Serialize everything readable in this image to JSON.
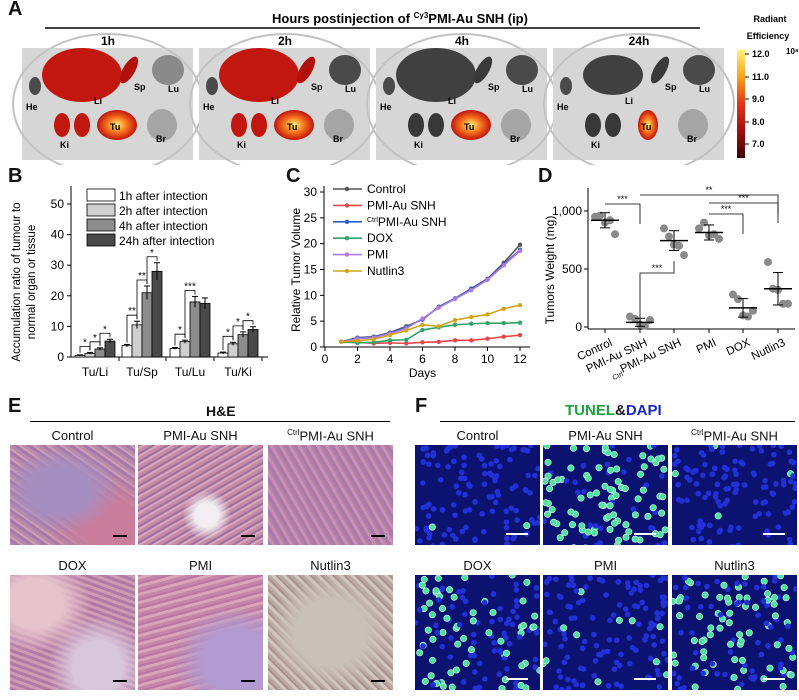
{
  "panel_labels": {
    "a": "A",
    "b": "B",
    "c": "C",
    "d": "D",
    "e": "E",
    "f": "F"
  },
  "panel_a": {
    "title_prefix": "Hours postinjection of ",
    "title_sup": "Cy3",
    "title_suffix": "PMI-Au SNH (ip)",
    "timepoints": [
      "1h",
      "2h",
      "4h",
      "24h"
    ],
    "organs": {
      "he": "He",
      "li": "Li",
      "sp": "Sp",
      "lu": "Lu",
      "ki": "Ki",
      "tu": "Tu",
      "br": "Br"
    },
    "colorbar": {
      "title_1": "Radiant",
      "title_2": "Efficiency",
      "exponent": "10⁸",
      "ticks": [
        "12.0",
        "11.0",
        "9.0",
        "8.0",
        "7.0"
      ],
      "colors": [
        "#fdf27a",
        "#f7a21c",
        "#e2331a",
        "#a10e0e",
        "#3a0606"
      ]
    }
  },
  "chart_data": [
    {
      "type": "bar",
      "panel": "B",
      "ylabel_1": "Accumulation ratio of tumour to",
      "ylabel_2": "normal organ or tissue",
      "ylim": [
        0,
        55
      ],
      "yticks": [
        "0",
        "10",
        "20",
        "30",
        "40",
        "50"
      ],
      "categories": [
        "Tu/Li",
        "Tu/Sp",
        "Tu/Lu",
        "Tu/Ki"
      ],
      "series": [
        {
          "name": "1h after intection",
          "values": [
            0.5,
            3.7,
            2.8,
            1.3
          ],
          "errors": [
            0.2,
            0.4,
            0.3,
            0.3
          ],
          "color": "#ffffff"
        },
        {
          "name": "2h after intection",
          "values": [
            1.2,
            10.5,
            5.0,
            4.3
          ],
          "errors": [
            0.3,
            1.2,
            0.5,
            0.5
          ],
          "color": "#cfcfcf"
        },
        {
          "name": "4h after intection",
          "values": [
            2.6,
            21.0,
            18.0,
            7.3
          ],
          "errors": [
            0.4,
            2.2,
            1.8,
            0.9
          ],
          "color": "#8c8c8c"
        },
        {
          "name": "24h after intection",
          "values": [
            5.2,
            28.0,
            17.5,
            9.0
          ],
          "errors": [
            0.6,
            2.8,
            1.8,
            0.9
          ],
          "color": "#4a4a4a"
        }
      ],
      "significance": [
        [
          "Tu/Li",
          "1h",
          "2h",
          "*"
        ],
        [
          "Tu/Li",
          "2h",
          "4h",
          "*"
        ],
        [
          "Tu/Li",
          "4h",
          "24h",
          "*"
        ],
        [
          "Tu/Sp",
          "1h",
          "2h",
          "**"
        ],
        [
          "Tu/Sp",
          "2h",
          "4h",
          "**"
        ],
        [
          "Tu/Sp",
          "4h",
          "24h",
          "*"
        ],
        [
          "Tu/Lu",
          "1h",
          "2h",
          "*"
        ],
        [
          "Tu/Lu",
          "2h",
          "4h",
          "***"
        ],
        [
          "Tu/Ki",
          "1h",
          "2h",
          "*"
        ],
        [
          "Tu/Ki",
          "2h",
          "4h",
          "*"
        ],
        [
          "Tu/Ki",
          "4h",
          "24h",
          "*"
        ]
      ]
    },
    {
      "type": "line",
      "panel": "C",
      "xlabel": "Days",
      "ylabel": "Relative Tumor Volume",
      "xlim": [
        0,
        12.5
      ],
      "ylim": [
        0,
        30
      ],
      "xticks": [
        "0",
        "2",
        "4",
        "6",
        "8",
        "10",
        "12"
      ],
      "yticks": [
        "0",
        "5",
        "10",
        "15",
        "20",
        "25",
        "30"
      ],
      "x": [
        1,
        2,
        3,
        4,
        5,
        6,
        7,
        8,
        9,
        10,
        11,
        12
      ],
      "series": [
        {
          "name": "Control",
          "color": "#555555",
          "values": [
            1,
            1.8,
            2.0,
            2.8,
            4.0,
            5.3,
            7.8,
            9.4,
            11.3,
            13.2,
            16.3,
            19.8
          ]
        },
        {
          "name": "PMI-Au SNH",
          "color": "#e8474a",
          "values": [
            1,
            0.9,
            0.7,
            0.8,
            0.7,
            0.9,
            1.0,
            1.3,
            1.3,
            1.6,
            2.0,
            2.3
          ]
        },
        {
          "name_sup": "Ctrl",
          "name": "PMI-Au SNH",
          "color": "#2a5fd0",
          "values": [
            1,
            1.7,
            1.9,
            2.7,
            3.8,
            5.4,
            7.7,
            9.4,
            11.2,
            13.1,
            16.0,
            18.8
          ]
        },
        {
          "name": "DOX",
          "color": "#2fa36b",
          "values": [
            1,
            0.8,
            0.9,
            1.3,
            1.4,
            3.3,
            3.8,
            4.3,
            4.5,
            4.6,
            4.6,
            4.7
          ]
        },
        {
          "name": "PMI",
          "color": "#b07ae0",
          "values": [
            1,
            1.6,
            1.8,
            2.6,
            3.6,
            5.5,
            7.6,
            9.3,
            11.0,
            13.0,
            15.8,
            18.6
          ]
        },
        {
          "name": "Nutlin3",
          "color": "#d4a319",
          "values": [
            1,
            1.2,
            1.5,
            2.3,
            3.2,
            4.3,
            4.0,
            5.2,
            5.8,
            6.3,
            7.4,
            8.1
          ]
        }
      ]
    },
    {
      "type": "scatter",
      "panel": "D",
      "ylabel": "Tumors Weight (mg)",
      "ylim": [
        0,
        1200
      ],
      "yticks": [
        "0",
        "500",
        "1,000"
      ],
      "categories": [
        "Control",
        "PMI-Au SNH",
        "PMI-Au SNH",
        "PMI",
        "DOX",
        "Nutlin3"
      ],
      "category_sup": [
        "",
        "",
        "Ctrl",
        "",
        "",
        ""
      ],
      "points": [
        [
          950,
          960,
          900,
          920,
          800
        ],
        [
          90,
          70,
          20,
          10,
          60
        ],
        [
          850,
          780,
          710,
          700,
          620
        ],
        [
          850,
          900,
          790,
          800,
          760
        ],
        [
          280,
          240,
          100,
          90,
          140
        ],
        [
          560,
          330,
          320,
          200,
          200
        ]
      ],
      "means": [
        920,
        40,
        745,
        815,
        165,
        330
      ],
      "sd": [
        65,
        35,
        85,
        65,
        80,
        140
      ],
      "significance": [
        [
          0,
          1,
          "***"
        ],
        [
          1,
          5,
          "**"
        ],
        [
          3,
          5,
          "***"
        ],
        [
          3,
          4,
          "***"
        ],
        [
          1,
          2,
          "***"
        ]
      ]
    }
  ],
  "panel_e": {
    "title": "H&E",
    "captions": [
      "Control",
      "PMI-Au SNH",
      "PMI-Au SNH",
      "DOX",
      "PMI",
      "Nutlin3"
    ],
    "caption_sup": [
      "",
      "",
      "Ctrl",
      "",
      "",
      ""
    ]
  },
  "panel_f": {
    "title_1": "TUNEL",
    "title_amp": "&",
    "title_2": "DAPI",
    "captions": [
      "Control",
      "PMI-Au SNH",
      "PMI-Au SNH",
      "DOX",
      "PMI",
      "Nutlin3"
    ],
    "caption_sup": [
      "",
      "",
      "Ctrl",
      "",
      "",
      ""
    ],
    "green_density": [
      0.02,
      0.7,
      0.03,
      0.5,
      0.05,
      0.45
    ]
  }
}
